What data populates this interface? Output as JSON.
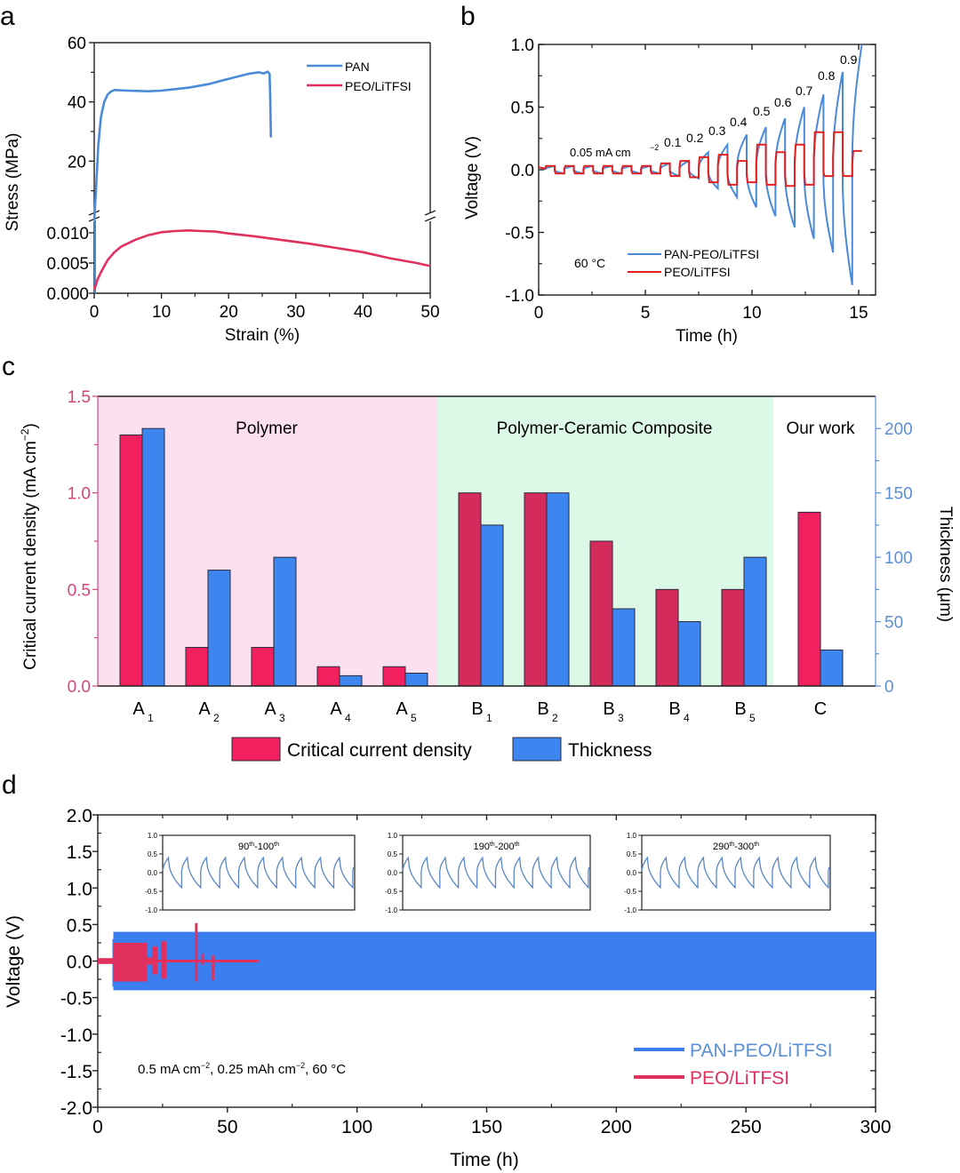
{
  "panels": {
    "a": {
      "label": "a"
    },
    "b": {
      "label": "b"
    },
    "c": {
      "label": "c"
    },
    "d": {
      "label": "d"
    }
  },
  "colors": {
    "pan_blue": "#4a8ad8",
    "peo_red": "#e0305e",
    "b_red": "#e32020",
    "bar_red": "#f2205e",
    "bar_red_dark": "#d42a5c",
    "bar_blue": "#3d86f0",
    "polymer_bg": "#fde0ef",
    "composite_bg": "#dcf8e6",
    "left_axis_pink": "#d6457a",
    "right_axis_blue": "#5b8fd6",
    "band_blue": "#3b7ef0"
  },
  "chart_data": [
    {
      "id": "a",
      "type": "line",
      "title": "",
      "xlabel": "Strain (%)",
      "ylabel": "Stress (MPa)",
      "xlim": [
        0,
        50
      ],
      "xticks": [
        "0",
        "10",
        "20",
        "30",
        "40",
        "50"
      ],
      "axis_break": true,
      "upper_ylim": [
        0,
        60
      ],
      "upper_yticks": [
        "20",
        "40",
        "60"
      ],
      "lower_ylim": [
        0,
        0.012
      ],
      "lower_yticks": [
        "0.000",
        "0.005",
        "0.010"
      ],
      "legend": {
        "position": "top-right",
        "entries": [
          "PAN",
          "PEO/LiTFSI"
        ]
      },
      "series": [
        {
          "name": "PAN",
          "segment": "upper",
          "x": [
            0,
            0.3,
            0.6,
            1.0,
            1.5,
            2.0,
            2.5,
            3.0,
            5,
            8,
            10,
            14,
            17,
            20,
            23,
            24.5,
            25.2,
            25.8,
            26.1,
            26.2,
            26.3
          ],
          "y": [
            0,
            12,
            25,
            35,
            40,
            42.5,
            43.5,
            44,
            43.8,
            43.6,
            43.8,
            44.8,
            46,
            47.8,
            49.5,
            50,
            49.6,
            50.2,
            49.5,
            40,
            28
          ]
        },
        {
          "name": "PEO/LiTFSI",
          "segment": "lower",
          "x": [
            0,
            0.5,
            1,
            2,
            3,
            4,
            6,
            8,
            10,
            12,
            14,
            16,
            18,
            20,
            24,
            28,
            32,
            36,
            40,
            44,
            48,
            50
          ],
          "y": [
            0.0005,
            0.0023,
            0.0035,
            0.0055,
            0.0068,
            0.0077,
            0.0088,
            0.0096,
            0.0101,
            0.0103,
            0.0104,
            0.0103,
            0.0102,
            0.0099,
            0.0094,
            0.0088,
            0.0082,
            0.0075,
            0.0068,
            0.0058,
            0.005,
            0.0045
          ]
        }
      ]
    },
    {
      "id": "b",
      "type": "line",
      "title": "",
      "xlabel": "Time (h)",
      "ylabel": "Voltage (V)",
      "xlim": [
        0,
        15.5
      ],
      "ylim": [
        -1.0,
        1.0
      ],
      "xticks": [
        "0",
        "5",
        "10",
        "15"
      ],
      "yticks": [
        "-1.0",
        "-0.5",
        "0.0",
        "0.5",
        "1.0"
      ],
      "annotation_temp": "60 °C",
      "annotation_first": "0.05 mA cm",
      "annotation_first_sup": "−2",
      "step_labels": [
        "0.1",
        "0.2",
        "0.3",
        "0.4",
        "0.5",
        "0.6",
        "0.7",
        "0.8",
        "0.9"
      ],
      "legend": {
        "position": "bottom-center",
        "entries": [
          "PAN-PEO/LiTFSI",
          "PEO/LiTFSI"
        ]
      },
      "current_steps_mA_cm2": [
        0.05,
        0.05,
        0.05,
        0.05,
        0.05,
        0.05,
        0.05,
        0.1,
        0.2,
        0.3,
        0.4,
        0.5,
        0.6,
        0.7,
        0.8,
        0.9,
        1.0
      ],
      "series": [
        {
          "name": "PAN-PEO/LiTFSI",
          "peak_voltages": [
            0.03,
            0.03,
            0.03,
            0.03,
            0.03,
            0.03,
            0.05,
            0.07,
            0.14,
            0.2,
            0.28,
            0.34,
            0.41,
            0.5,
            0.6,
            0.78,
            1.0
          ],
          "trough_voltages": [
            -0.03,
            -0.03,
            -0.03,
            -0.03,
            -0.03,
            -0.03,
            -0.05,
            -0.07,
            -0.15,
            -0.22,
            -0.3,
            -0.37,
            -0.46,
            -0.55,
            -0.66,
            -0.92,
            null
          ]
        },
        {
          "name": "PEO/LiTFSI",
          "peak_voltages": [
            0.03,
            0.03,
            0.03,
            0.03,
            0.03,
            0.03,
            0.05,
            0.07,
            0.1,
            0.12,
            0.07,
            0.2,
            0.14,
            0.2,
            0.3,
            0.3,
            0.15
          ],
          "trough_voltages": [
            -0.03,
            -0.03,
            -0.03,
            -0.03,
            -0.03,
            -0.03,
            -0.05,
            -0.06,
            -0.1,
            -0.12,
            -0.1,
            -0.12,
            -0.13,
            -0.12,
            -0.05,
            -0.05,
            null
          ]
        }
      ]
    },
    {
      "id": "c",
      "type": "bar",
      "title": "",
      "categories": [
        "A",
        "A",
        "A",
        "A",
        "A",
        "B",
        "B",
        "B",
        "B",
        "B",
        "C"
      ],
      "category_subscripts": [
        "1",
        "2",
        "3",
        "4",
        "5",
        "1",
        "2",
        "3",
        "4",
        "5",
        ""
      ],
      "ylabel": "Critical current density (mA cm",
      "ylabel_sup": "−2",
      "ylabel_tail": ")",
      "y2label": "Thickness (μm)",
      "ylim": [
        0,
        1.5
      ],
      "yticks": [
        "0.0",
        "0.5",
        "1.0",
        "1.5"
      ],
      "y2lim": [
        0,
        225
      ],
      "y2ticks": [
        "0",
        "50",
        "100",
        "150",
        "200"
      ],
      "regions": [
        {
          "name": "Polymer",
          "from": 0,
          "to": 4
        },
        {
          "name": "Polymer-Ceramic Composite",
          "from": 5,
          "to": 9
        },
        {
          "name": "Our work",
          "from": 10,
          "to": 10
        }
      ],
      "legend": {
        "position": "bottom-center",
        "entries": [
          "Critical current density",
          "Thickness"
        ]
      },
      "series": [
        {
          "name": "Critical current density",
          "axis": "left",
          "values": [
            1.3,
            0.2,
            0.2,
            0.1,
            0.1,
            1.0,
            1.0,
            0.75,
            0.5,
            0.5,
            0.9
          ]
        },
        {
          "name": "Thickness",
          "axis": "right",
          "values": [
            200,
            90,
            100,
            8,
            10,
            125,
            150,
            60,
            50,
            100,
            28
          ]
        }
      ]
    },
    {
      "id": "d",
      "type": "line",
      "title": "",
      "xlabel": "Time (h)",
      "ylabel": "Voltage (V)",
      "xlim": [
        0,
        300
      ],
      "ylim": [
        -2.0,
        2.0
      ],
      "xticks": [
        "0",
        "50",
        "100",
        "150",
        "200",
        "250",
        "300"
      ],
      "yticks": [
        "-2.0",
        "-1.5",
        "-1.0",
        "-0.5",
        "0.0",
        "0.5",
        "1.0",
        "1.5",
        "2.0"
      ],
      "annotation": "0.5 mA cm⁻², 0.25 mAh cm⁻², 60 °C",
      "annotation_parts": [
        "0.5 mA cm",
        "−2",
        ", 0.25 mAh cm",
        "−2",
        ", 60 °C"
      ],
      "legend": {
        "position": "bottom-right",
        "entries": [
          "PAN-PEO/LiTFSI",
          "PEO/LiTFSI"
        ]
      },
      "series": [
        {
          "name": "PAN-PEO/LiTFSI",
          "start_h": 6,
          "end_h": 300,
          "upper_envelope_V": 0.4,
          "lower_envelope_V": -0.4
        },
        {
          "name": "PEO/LiTFSI",
          "end_h": 62,
          "events": [
            {
              "x": 0,
              "x2": 6,
              "hi": 0.04,
              "lo": -0.04
            },
            {
              "x": 6,
              "x2": 19,
              "hi": 0.25,
              "lo": -0.28
            },
            {
              "x": 19,
              "x2": 21,
              "hi": 0.05,
              "lo": -0.05
            },
            {
              "x": 21,
              "x2": 23,
              "hi": 0.2,
              "lo": -0.18
            },
            {
              "x": 24.5,
              "x2": 26.5,
              "hi": 0.27,
              "lo": -0.24
            },
            {
              "x": 37.5,
              "x2": 38.5,
              "hi": 0.52,
              "lo": -0.28
            },
            {
              "x": 40,
              "x2": 41,
              "hi": 0.1,
              "lo": -0.05
            },
            {
              "x": 44,
              "x2": 45,
              "hi": 0.08,
              "lo": -0.26
            }
          ]
        }
      ],
      "insets": [
        {
          "title": "90",
          "title_sup": "th",
          "title_mid": "-100",
          "title_sup2": "th",
          "ylim": [
            -1.0,
            1.0
          ],
          "yticks": [
            "-1.0",
            "-0.5",
            "0.0",
            "0.5",
            "1.0"
          ],
          "cycles": 10,
          "peak": 0.4,
          "trough": -0.4
        },
        {
          "title": "190",
          "title_sup": "th",
          "title_mid": "-200",
          "title_sup2": "th",
          "ylim": [
            -1.0,
            1.0
          ],
          "yticks": [
            "-1.0",
            "-0.5",
            "0.0",
            "0.5",
            "1.0"
          ],
          "cycles": 10,
          "peak": 0.4,
          "trough": -0.4
        },
        {
          "title": "290",
          "title_sup": "th",
          "title_mid": "-300",
          "title_sup2": "th",
          "ylim": [
            -1.0,
            1.0
          ],
          "yticks": [
            "-1.0",
            "-0.5",
            "0.0",
            "0.5",
            "1.0"
          ],
          "cycles": 10,
          "peak": 0.4,
          "trough": -0.4
        }
      ]
    }
  ]
}
